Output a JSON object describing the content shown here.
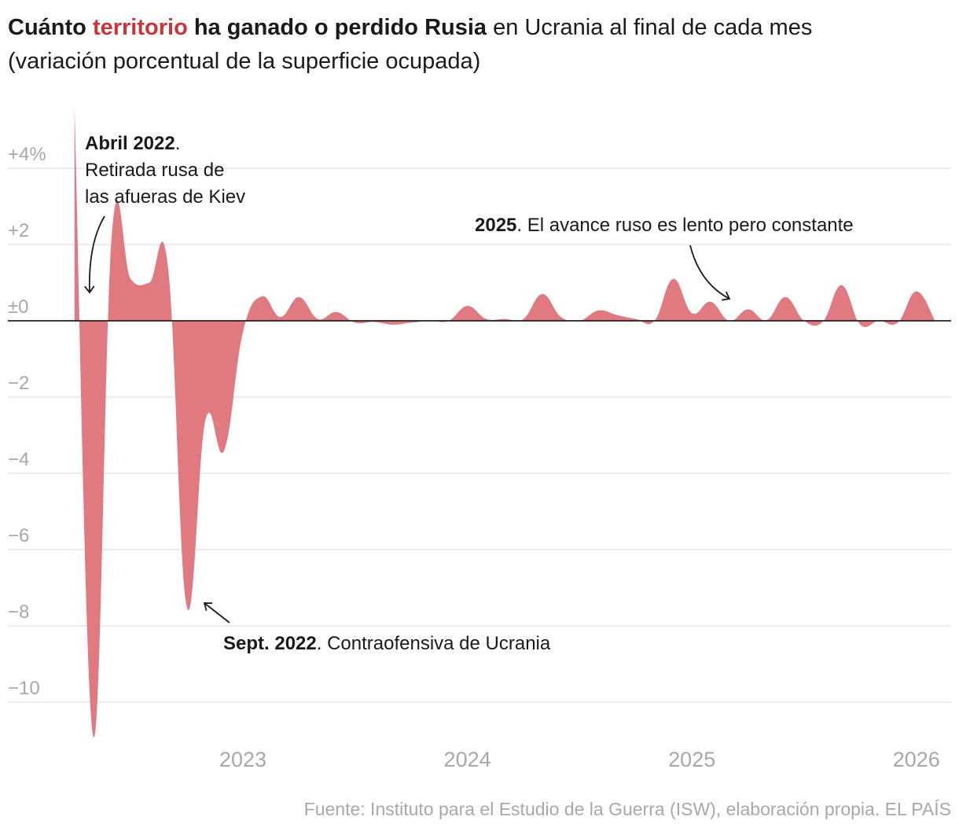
{
  "title": {
    "bold_1": "Cuánto ",
    "highlight": "territorio",
    "bold_2": " ha ganado o perdido Rusia",
    "regular": " en Ucrania al final de cada mes",
    "subtitle": "(variación porcentual de la superficie ocupada)"
  },
  "source": "Fuente: Instituto para el Estudio de la Guerra (ISW), elaboración propia. EL PAÍS",
  "colors": {
    "fill": "#e07a80",
    "highlight": "#c9333b",
    "grid": "#e0e0e0",
    "zero_line": "#222222",
    "tick": "#a8a8a8"
  },
  "chart_data": {
    "type": "area",
    "title": "Cuánto territorio ha ganado o perdido Rusia en Ucrania al final de cada mes",
    "subtitle": "(variación porcentual de la superficie ocupada)",
    "xlabel": "",
    "ylabel": "",
    "ylim": [
      -11,
      5.6
    ],
    "grid": true,
    "y_ticks": [
      {
        "value": 4,
        "label": "+4%"
      },
      {
        "value": 2,
        "label": "+2"
      },
      {
        "value": 0,
        "label": "±0"
      },
      {
        "value": -2,
        "label": "−2"
      },
      {
        "value": -4,
        "label": "−4"
      },
      {
        "value": -6,
        "label": "−6"
      },
      {
        "value": -8,
        "label": "−8"
      },
      {
        "value": -10,
        "label": "−10"
      }
    ],
    "x_ticks": [
      {
        "value": "2023-01",
        "label": "2023"
      },
      {
        "value": "2024-01",
        "label": "2024"
      },
      {
        "value": "2025-01",
        "label": "2025"
      },
      {
        "value": "2026-01",
        "label": "2026"
      }
    ],
    "x": [
      "2022-03",
      "2022-04",
      "2022-05",
      "2022-06",
      "2022-07",
      "2022-08",
      "2022-09",
      "2022-10",
      "2022-11",
      "2022-12",
      "2023-01",
      "2023-02",
      "2023-03",
      "2023-04",
      "2023-05",
      "2023-06",
      "2023-07",
      "2023-08",
      "2023-09",
      "2023-10",
      "2023-11",
      "2023-12",
      "2024-01",
      "2024-02",
      "2024-03",
      "2024-04",
      "2024-05",
      "2024-06",
      "2024-07",
      "2024-08",
      "2024-09",
      "2024-10",
      "2024-11",
      "2024-12",
      "2025-01",
      "2025-02",
      "2025-03",
      "2025-04",
      "2025-05",
      "2025-06",
      "2025-07",
      "2025-08",
      "2025-09",
      "2025-10",
      "2025-11",
      "2025-12",
      "2026-01"
    ],
    "values": [
      5.6,
      -10.9,
      2.3,
      1.1,
      1.0,
      1.4,
      -7.5,
      -2.6,
      -3.4,
      -0.3,
      0.64,
      0.1,
      0.62,
      0.05,
      0.23,
      -0.05,
      -0.03,
      -0.1,
      -0.05,
      0,
      0,
      0.39,
      0.05,
      0.05,
      0.05,
      0.7,
      0.1,
      0,
      0.27,
      0.15,
      0.05,
      0,
      1.1,
      0.2,
      0.5,
      0,
      0.3,
      0.02,
      0.62,
      0,
      -0.02,
      0.93,
      -0.1,
      0,
      -0.05,
      0.77,
      0
    ],
    "annotations": [
      {
        "bold": "Abril 2022",
        "text": ".",
        "line2": "Retirada rusa de",
        "line3": "las afueras de Kiev",
        "target": "2022-04"
      },
      {
        "bold": "Sept. 2022",
        "text": ". Contraofensiva de Ucrania",
        "target": "2022-09"
      },
      {
        "bold": "2025",
        "text": ". El avance ruso es lento pero constante",
        "target": "2025-03"
      }
    ]
  }
}
